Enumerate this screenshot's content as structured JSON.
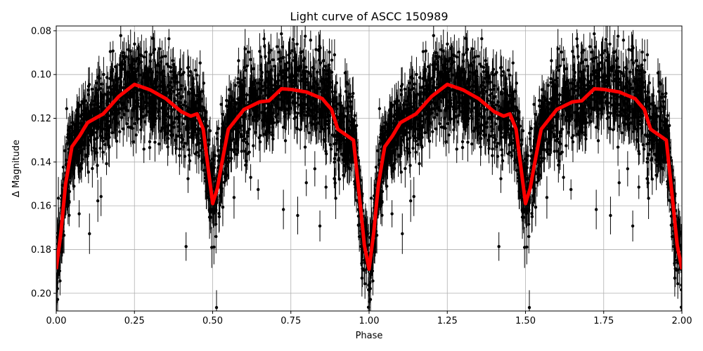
{
  "chart_data": {
    "type": "scatter",
    "title": "Light curve of ASCC 150989",
    "xlabel": "Phase",
    "ylabel": "Δ Magnitude",
    "xlim": [
      0,
      2
    ],
    "ylim": [
      0.0778,
      0.2081
    ],
    "y_inverted": true,
    "grid": true,
    "xticks": [
      0,
      0.25,
      0.5,
      0.75,
      1.0,
      1.25,
      1.5,
      1.75,
      2.0
    ],
    "xtick_labels": [
      "0.00",
      "0.25",
      "0.50",
      "0.75",
      "1.00",
      "1.25",
      "1.50",
      "1.75",
      "2.00"
    ],
    "yticks": [
      0.08,
      0.1,
      0.12,
      0.14,
      0.16,
      0.18,
      0.2
    ],
    "ytick_labels": [
      "0.08",
      "0.10",
      "0.12",
      "0.14",
      "0.16",
      "0.18",
      "0.20"
    ],
    "series": [
      {
        "kind": "errorbar-scatter",
        "color": "#000000",
        "description_note": "phase-folded observations with error bars, shown over two cycles"
      },
      {
        "kind": "line",
        "color": "#ff0000",
        "x": [
          0,
          0.015,
          0.03,
          0.05,
          0.075,
          0.1,
          0.15,
          0.2,
          0.25,
          0.3,
          0.35,
          0.4,
          0.43,
          0.45,
          0.47,
          0.485,
          0.5,
          0.515,
          0.53,
          0.55,
          0.6,
          0.65,
          0.68,
          0.72,
          0.75,
          0.8,
          0.85,
          0.88,
          0.9,
          0.93,
          0.95,
          0.965,
          0.985,
          1.0
        ],
        "y": [
          0.189,
          0.172,
          0.15,
          0.133,
          0.128,
          0.122,
          0.118,
          0.11,
          0.1045,
          0.107,
          0.111,
          0.117,
          0.119,
          0.118,
          0.125,
          0.142,
          0.159,
          0.152,
          0.14,
          0.125,
          0.116,
          0.1125,
          0.112,
          0.1065,
          0.1068,
          0.108,
          0.111,
          0.116,
          0.125,
          0.128,
          0.13,
          0.15,
          0.178,
          0.189
        ],
        "repeat_period": 1
      }
    ]
  }
}
